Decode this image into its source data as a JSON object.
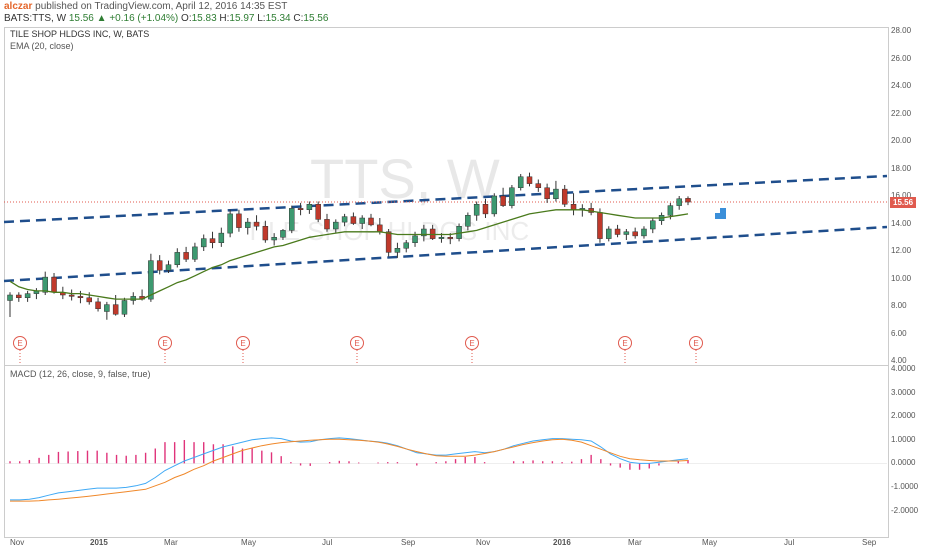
{
  "header": {
    "user": "alczar",
    "published": "published on TradingView.com, April 12, 2016 14:35 EST",
    "symbol": "BATS:TTS, W",
    "last": "15.56",
    "change": "+0.16 (+1.04%)",
    "o_label": "O:",
    "o": "15.83",
    "h_label": "H:",
    "h": "15.97",
    "l_label": "L:",
    "l": "15.34",
    "c_label": "C:",
    "c": "15.56"
  },
  "main_panel": {
    "title": "TILE SHOP HLDGS INC, W, BATS",
    "indicator": "EMA (20, close)",
    "watermark_ticker": "TTS, W",
    "watermark_name": "TILE SHOP HLDGS INC",
    "price_tag": "15.56",
    "y_ticks": [
      "28.00",
      "26.00",
      "24.00",
      "22.00",
      "20.00",
      "18.00",
      "16.00",
      "14.00",
      "12.00",
      "10.00",
      "8.00",
      "6.00",
      "4.00"
    ],
    "earnings_marker": "E"
  },
  "macd_panel": {
    "title": "MACD (12, 26, close, 9, false, true)",
    "y_ticks": [
      "4.0000",
      "3.0000",
      "2.0000",
      "1.0000",
      "0.0000",
      "-1.0000",
      "-2.0000"
    ]
  },
  "x_axis": [
    "Nov",
    "2015",
    "Mar",
    "May",
    "Jul",
    "Sep",
    "Nov",
    "2016",
    "Mar",
    "May",
    "Jul",
    "Sep"
  ],
  "colors": {
    "up": "#3d9970",
    "down": "#c0392b",
    "ema": "#4a7a1c",
    "macd": "#3fa9f5",
    "signal": "#f0882a",
    "hist": "#e0337a",
    "trend": "#1f4e8c",
    "arrow": "#3b8fd9"
  },
  "chart_data": {
    "type": "candlestick",
    "candles": [
      {
        "o": 8.4,
        "h": 9.0,
        "l": 7.2,
        "c": 8.8
      },
      {
        "o": 8.8,
        "h": 9.0,
        "l": 8.3,
        "c": 8.6
      },
      {
        "o": 8.6,
        "h": 9.1,
        "l": 8.3,
        "c": 8.9
      },
      {
        "o": 8.9,
        "h": 9.3,
        "l": 8.5,
        "c": 9.1
      },
      {
        "o": 9.0,
        "h": 10.5,
        "l": 8.8,
        "c": 10.1
      },
      {
        "o": 10.1,
        "h": 10.4,
        "l": 8.9,
        "c": 9.0
      },
      {
        "o": 9.0,
        "h": 9.4,
        "l": 8.5,
        "c": 8.8
      },
      {
        "o": 8.8,
        "h": 9.2,
        "l": 8.4,
        "c": 8.7
      },
      {
        "o": 8.7,
        "h": 9.1,
        "l": 8.2,
        "c": 8.6
      },
      {
        "o": 8.6,
        "h": 9.0,
        "l": 8.1,
        "c": 8.3
      },
      {
        "o": 8.3,
        "h": 8.6,
        "l": 7.6,
        "c": 7.8
      },
      {
        "o": 7.6,
        "h": 8.3,
        "l": 7.0,
        "c": 8.1
      },
      {
        "o": 8.1,
        "h": 8.8,
        "l": 7.3,
        "c": 7.4
      },
      {
        "o": 7.4,
        "h": 8.6,
        "l": 7.2,
        "c": 8.4
      },
      {
        "o": 8.4,
        "h": 9.0,
        "l": 8.1,
        "c": 8.7
      },
      {
        "o": 8.7,
        "h": 9.2,
        "l": 8.4,
        "c": 8.5
      },
      {
        "o": 8.5,
        "h": 11.8,
        "l": 8.3,
        "c": 11.3
      },
      {
        "o": 11.3,
        "h": 11.7,
        "l": 10.3,
        "c": 10.6
      },
      {
        "o": 10.6,
        "h": 11.3,
        "l": 10.4,
        "c": 11.0
      },
      {
        "o": 11.0,
        "h": 12.2,
        "l": 10.8,
        "c": 11.9
      },
      {
        "o": 11.9,
        "h": 12.3,
        "l": 11.2,
        "c": 11.4
      },
      {
        "o": 11.4,
        "h": 12.6,
        "l": 11.2,
        "c": 12.3
      },
      {
        "o": 12.3,
        "h": 13.2,
        "l": 12.0,
        "c": 12.9
      },
      {
        "o": 12.9,
        "h": 13.4,
        "l": 12.2,
        "c": 12.6
      },
      {
        "o": 12.6,
        "h": 13.7,
        "l": 12.3,
        "c": 13.3
      },
      {
        "o": 13.3,
        "h": 15.0,
        "l": 13.0,
        "c": 14.7
      },
      {
        "o": 14.7,
        "h": 15.0,
        "l": 13.4,
        "c": 13.7
      },
      {
        "o": 13.7,
        "h": 14.4,
        "l": 13.2,
        "c": 14.1
      },
      {
        "o": 14.1,
        "h": 14.6,
        "l": 13.5,
        "c": 13.8
      },
      {
        "o": 13.8,
        "h": 14.2,
        "l": 12.6,
        "c": 12.8
      },
      {
        "o": 12.8,
        "h": 13.3,
        "l": 12.4,
        "c": 13.0
      },
      {
        "o": 13.0,
        "h": 13.6,
        "l": 12.8,
        "c": 13.5
      },
      {
        "o": 13.5,
        "h": 15.3,
        "l": 13.3,
        "c": 15.1
      },
      {
        "o": 15.1,
        "h": 15.5,
        "l": 14.6,
        "c": 15.0
      },
      {
        "o": 15.0,
        "h": 15.6,
        "l": 14.7,
        "c": 15.4
      },
      {
        "o": 15.4,
        "h": 15.6,
        "l": 14.1,
        "c": 14.3
      },
      {
        "o": 14.3,
        "h": 14.7,
        "l": 13.4,
        "c": 13.6
      },
      {
        "o": 13.6,
        "h": 14.3,
        "l": 13.3,
        "c": 14.1
      },
      {
        "o": 14.1,
        "h": 14.7,
        "l": 13.8,
        "c": 14.5
      },
      {
        "o": 14.5,
        "h": 14.8,
        "l": 13.9,
        "c": 14.0
      },
      {
        "o": 14.0,
        "h": 14.6,
        "l": 13.6,
        "c": 14.4
      },
      {
        "o": 14.4,
        "h": 14.7,
        "l": 13.8,
        "c": 13.9
      },
      {
        "o": 13.9,
        "h": 14.4,
        "l": 13.2,
        "c": 13.4
      },
      {
        "o": 13.4,
        "h": 13.6,
        "l": 11.6,
        "c": 11.9
      },
      {
        "o": 11.9,
        "h": 12.6,
        "l": 11.5,
        "c": 12.2
      },
      {
        "o": 12.2,
        "h": 12.8,
        "l": 11.9,
        "c": 12.6
      },
      {
        "o": 12.6,
        "h": 13.4,
        "l": 12.3,
        "c": 13.1
      },
      {
        "o": 13.1,
        "h": 13.9,
        "l": 12.7,
        "c": 13.6
      },
      {
        "o": 13.6,
        "h": 13.9,
        "l": 12.8,
        "c": 12.9
      },
      {
        "o": 12.9,
        "h": 13.3,
        "l": 12.6,
        "c": 13.0
      },
      {
        "o": 13.0,
        "h": 13.3,
        "l": 12.5,
        "c": 12.9
      },
      {
        "o": 12.9,
        "h": 14.0,
        "l": 12.7,
        "c": 13.8
      },
      {
        "o": 13.8,
        "h": 14.8,
        "l": 13.5,
        "c": 14.6
      },
      {
        "o": 14.6,
        "h": 15.6,
        "l": 14.2,
        "c": 15.4
      },
      {
        "o": 15.4,
        "h": 15.8,
        "l": 14.4,
        "c": 14.7
      },
      {
        "o": 14.7,
        "h": 16.2,
        "l": 14.5,
        "c": 16.0
      },
      {
        "o": 16.0,
        "h": 16.6,
        "l": 15.2,
        "c": 15.3
      },
      {
        "o": 15.3,
        "h": 16.8,
        "l": 15.1,
        "c": 16.6
      },
      {
        "o": 16.6,
        "h": 17.6,
        "l": 16.4,
        "c": 17.4
      },
      {
        "o": 17.4,
        "h": 17.7,
        "l": 16.7,
        "c": 16.9
      },
      {
        "o": 16.9,
        "h": 17.2,
        "l": 16.3,
        "c": 16.6
      },
      {
        "o": 16.6,
        "h": 16.9,
        "l": 15.5,
        "c": 15.8
      },
      {
        "o": 15.8,
        "h": 17.1,
        "l": 15.6,
        "c": 16.5
      },
      {
        "o": 16.5,
        "h": 16.8,
        "l": 15.2,
        "c": 15.4
      },
      {
        "o": 15.4,
        "h": 16.2,
        "l": 14.6,
        "c": 15.0
      },
      {
        "o": 15.0,
        "h": 15.4,
        "l": 14.5,
        "c": 15.1
      },
      {
        "o": 15.1,
        "h": 15.5,
        "l": 14.6,
        "c": 14.8
      },
      {
        "o": 14.8,
        "h": 15.1,
        "l": 12.6,
        "c": 12.9
      },
      {
        "o": 12.9,
        "h": 13.8,
        "l": 12.7,
        "c": 13.6
      },
      {
        "o": 13.6,
        "h": 13.9,
        "l": 13.0,
        "c": 13.2
      },
      {
        "o": 13.2,
        "h": 13.6,
        "l": 12.8,
        "c": 13.4
      },
      {
        "o": 13.4,
        "h": 13.7,
        "l": 12.9,
        "c": 13.1
      },
      {
        "o": 13.1,
        "h": 13.8,
        "l": 12.9,
        "c": 13.6
      },
      {
        "o": 13.6,
        "h": 14.4,
        "l": 13.3,
        "c": 14.2
      },
      {
        "o": 14.2,
        "h": 14.8,
        "l": 13.9,
        "c": 14.6
      },
      {
        "o": 14.6,
        "h": 15.5,
        "l": 14.3,
        "c": 15.3
      },
      {
        "o": 15.3,
        "h": 16.0,
        "l": 15.0,
        "c": 15.8
      },
      {
        "o": 15.83,
        "h": 15.97,
        "l": 15.34,
        "c": 15.56
      }
    ],
    "ema": [
      9.8,
      9.4,
      9.2,
      9.1,
      9.1,
      9.0,
      9.0,
      8.9,
      8.9,
      8.8,
      8.7,
      8.6,
      8.5,
      8.5,
      8.5,
      8.5,
      8.8,
      9.1,
      9.4,
      9.7,
      9.9,
      10.2,
      10.5,
      10.8,
      11.0,
      11.3,
      11.5,
      11.7,
      11.9,
      12.1,
      12.3,
      12.4,
      12.6,
      12.8,
      13.0,
      13.1,
      13.2,
      13.3,
      13.4,
      13.4,
      13.4,
      13.4,
      13.4,
      13.3,
      13.2,
      13.2,
      13.2,
      13.2,
      13.2,
      13.2,
      13.2,
      13.3,
      13.4,
      13.5,
      13.7,
      13.9,
      14.1,
      14.3,
      14.5,
      14.7,
      14.8,
      14.9,
      15.0,
      15.0,
      15.0,
      15.0,
      14.9,
      14.8,
      14.7,
      14.6,
      14.5,
      14.4,
      14.4,
      14.4,
      14.4,
      14.5,
      14.6,
      14.7
    ],
    "macd": [
      -1.55,
      -1.55,
      -1.52,
      -1.45,
      -1.35,
      -1.25,
      -1.2,
      -1.15,
      -1.1,
      -1.05,
      -1.05,
      -1.05,
      -1.02,
      -0.95,
      -0.85,
      -0.6,
      -0.3,
      -0.1,
      0.1,
      0.25,
      0.4,
      0.55,
      0.7,
      0.8,
      0.9,
      1.0,
      1.05,
      1.08,
      1.05,
      0.95,
      0.9,
      0.92,
      1.0,
      1.05,
      1.08,
      1.05,
      1.0,
      0.95,
      0.92,
      0.85,
      0.75,
      0.6,
      0.45,
      0.4,
      0.35,
      0.35,
      0.4,
      0.45,
      0.5,
      0.45,
      0.5,
      0.6,
      0.75,
      0.85,
      0.95,
      1.0,
      1.05,
      1.05,
      1.02,
      1.0,
      0.95,
      0.7,
      0.4,
      0.2,
      0.05,
      0.0,
      0.0,
      0.05,
      0.1,
      0.15,
      0.2
    ],
    "signal": [
      -1.6,
      -1.6,
      -1.6,
      -1.58,
      -1.55,
      -1.52,
      -1.48,
      -1.44,
      -1.4,
      -1.35,
      -1.3,
      -1.25,
      -1.2,
      -1.15,
      -1.1,
      -0.95,
      -0.8,
      -0.6,
      -0.45,
      -0.25,
      -0.1,
      0.1,
      0.25,
      0.4,
      0.55,
      0.65,
      0.75,
      0.82,
      0.88,
      0.92,
      0.95,
      0.98,
      1.0,
      1.02,
      1.02,
      1.0,
      0.98,
      0.95,
      0.9,
      0.82,
      0.72,
      0.6,
      0.5,
      0.4,
      0.32,
      0.3,
      0.3,
      0.3,
      0.35,
      0.42,
      0.5,
      0.6,
      0.7,
      0.8,
      0.88,
      0.95,
      1.0,
      1.02,
      0.98,
      0.9,
      0.75,
      0.6,
      0.45,
      0.3,
      0.2,
      0.15,
      0.12,
      0.1,
      0.1,
      0.1,
      0.12
    ],
    "ylim": [
      4,
      28
    ],
    "macd_ylim": [
      -2.4,
      4
    ]
  }
}
